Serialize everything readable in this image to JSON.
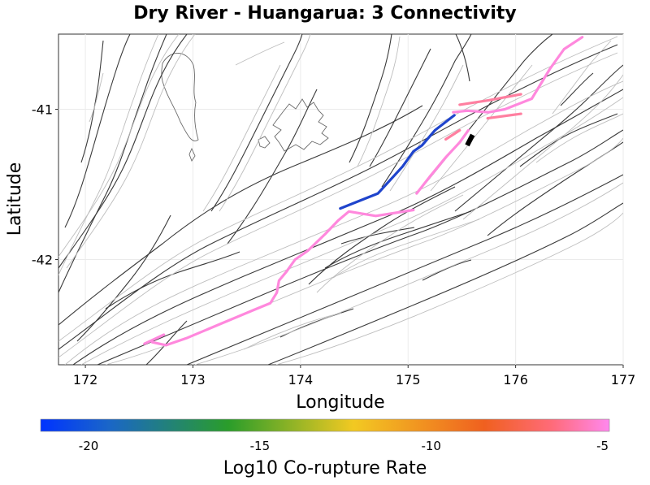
{
  "chart_data": {
    "type": "map",
    "title": "Dry River - Huangarua: 3 Connectivity",
    "xlabel": "Longitude",
    "ylabel": "Latitude",
    "xlim": [
      171.75,
      177.0
    ],
    "ylim": [
      -42.7,
      -40.5
    ],
    "xticks": [
      172,
      173,
      174,
      175,
      176,
      177
    ],
    "yticks": [
      -41,
      -42
    ],
    "colorbar": {
      "label": "Log10 Co-rupture Rate",
      "range": [
        -21.4,
        -4.8
      ],
      "ticks": [
        -20,
        -15,
        -10,
        -5
      ],
      "colors": [
        "#0033ff",
        "#2a9d2a",
        "#f2c922",
        "#f0601f",
        "#ff88ee"
      ]
    },
    "ruptures": [
      {
        "name": "source-fault",
        "color": "#000000",
        "log10_rate": null,
        "points": [
          [
            175.55,
            -41.24
          ],
          [
            175.6,
            -41.17
          ]
        ]
      },
      {
        "name": "blue-rupture",
        "color": "#1f44cc",
        "log10_rate": -20.5,
        "points": [
          [
            174.37,
            -41.66
          ],
          [
            174.72,
            -41.56
          ],
          [
            174.95,
            -41.38
          ],
          [
            175.05,
            -41.28
          ],
          [
            175.13,
            -41.24
          ],
          [
            175.25,
            -41.14
          ],
          [
            175.43,
            -41.04
          ]
        ]
      },
      {
        "name": "pink-main",
        "color": "#ff88dd",
        "log10_rate": -4.9,
        "points": [
          [
            172.62,
            -42.55
          ],
          [
            172.75,
            -42.57
          ],
          [
            172.95,
            -42.52
          ],
          [
            173.25,
            -42.43
          ],
          [
            173.55,
            -42.34
          ],
          [
            173.72,
            -42.29
          ],
          [
            173.78,
            -42.22
          ],
          [
            173.8,
            -42.14
          ],
          [
            173.87,
            -42.08
          ],
          [
            173.95,
            -42.0
          ],
          [
            174.07,
            -41.94
          ],
          [
            174.23,
            -41.83
          ],
          [
            174.35,
            -41.74
          ],
          [
            174.45,
            -41.68
          ],
          [
            174.7,
            -41.71
          ],
          [
            175.05,
            -41.67
          ]
        ]
      },
      {
        "name": "pink-short",
        "color": "#ff88dd",
        "log10_rate": -4.9,
        "points": [
          [
            172.55,
            -42.56
          ],
          [
            172.73,
            -42.5
          ]
        ]
      },
      {
        "name": "pink-wairarapa",
        "color": "#ff88dd",
        "log10_rate": -4.9,
        "points": [
          [
            175.08,
            -41.56
          ],
          [
            175.2,
            -41.45
          ],
          [
            175.35,
            -41.32
          ],
          [
            175.48,
            -41.22
          ],
          [
            175.56,
            -41.14
          ]
        ]
      },
      {
        "name": "pink-eastern",
        "color": "#ff88dd",
        "log10_rate": -4.9,
        "points": [
          [
            175.42,
            -41.02
          ],
          [
            175.55,
            -41.01
          ],
          [
            175.75,
            -41.02
          ],
          [
            175.9,
            -41.0
          ],
          [
            176.15,
            -40.93
          ],
          [
            176.32,
            -40.73
          ],
          [
            176.45,
            -40.6
          ],
          [
            176.62,
            -40.52
          ]
        ]
      },
      {
        "name": "pink-salmon-1",
        "color": "#ff7fa0",
        "log10_rate": -5.3,
        "points": [
          [
            175.48,
            -40.97
          ],
          [
            175.75,
            -40.94
          ],
          [
            176.05,
            -40.9
          ]
        ]
      },
      {
        "name": "pink-salmon-2",
        "color": "#ff7fa0",
        "log10_rate": -5.3,
        "points": [
          [
            175.74,
            -41.06
          ],
          [
            176.05,
            -41.03
          ]
        ]
      },
      {
        "name": "pink-salmon-3",
        "color": "#ff7fa0",
        "log10_rate": -5.3,
        "points": [
          [
            175.35,
            -41.2
          ],
          [
            175.48,
            -41.14
          ]
        ]
      }
    ]
  }
}
